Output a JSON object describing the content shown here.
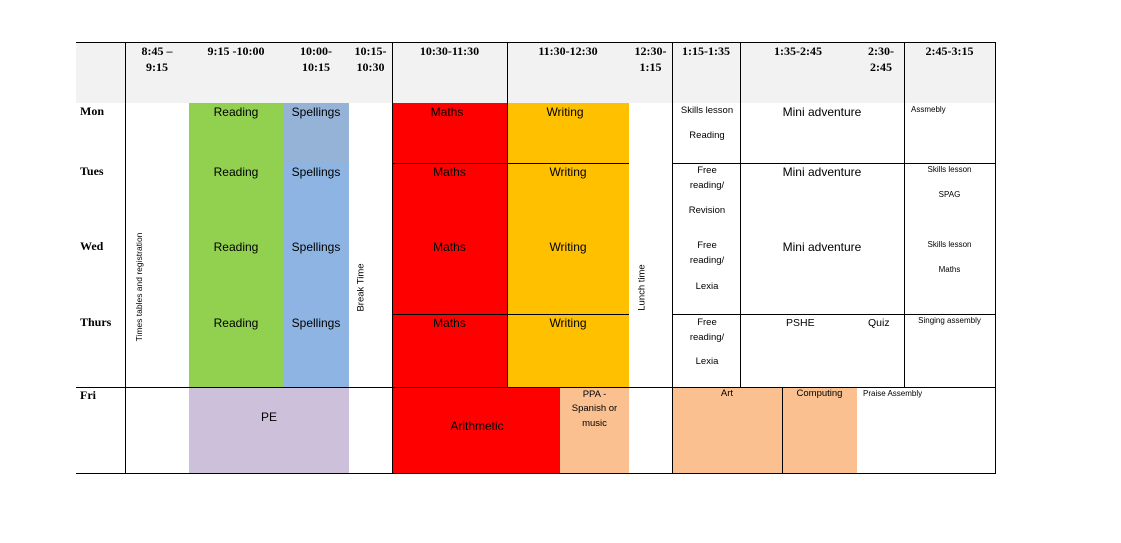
{
  "times": {
    "t1": "8:45 –\n9:15",
    "t2": "9:15 -10:00",
    "t3": "10:00-\n10:15",
    "t4": "10:15-\n10:30",
    "t5": "10:30-11:30",
    "t6": "11:30-12:30",
    "t7": "12:30-\n1:15",
    "t8": "1:15-1:35",
    "t9": "1:35-2:45",
    "t10": "2:30-\n2:45",
    "t11": "2:45-3:15"
  },
  "days": {
    "mon": "Mon",
    "tues": "Tues",
    "wed": "Wed",
    "thurs": "Thurs",
    "fri": "Fri"
  },
  "vertical": {
    "times_tables": "Times tables and registration",
    "break_time": "Break Time",
    "lunch_time": "Lunch time"
  },
  "subjects": {
    "reading": "Reading",
    "spellings": "Spellings",
    "maths": "Maths",
    "writing": "Writing",
    "pe": "PE",
    "arithmetic": "Arithmetic",
    "ppa": "PPA -\nSpanish or\nmusic",
    "art": "Art",
    "computing": "Computing",
    "praise_assembly": "Praise Assembly"
  },
  "afternoon": {
    "mon_skills": "Skills lesson",
    "mon_reading": "Reading",
    "mini_adventure": "Mini adventure",
    "assembly": "Assmebly",
    "tues_free": "Free\nreading/",
    "tues_revision": "Revision",
    "tues_skills": "Skills lesson",
    "tues_spag": "SPAG",
    "wed_free": "Free\nreading/",
    "wed_lexia": "Lexia",
    "wed_skills": "Skills lesson",
    "wed_maths": "Maths",
    "thurs_free": "Free\nreading/",
    "thurs_lexia": "Lexia",
    "pshe": "PSHE",
    "quiz": "Quiz",
    "singing_assembly": "Singing assembly"
  },
  "colors": {
    "header_bg": "#f2f2f2",
    "reading": "#92d050",
    "spellings": "#8eb4e3",
    "spellings_mon": "#95b3d7",
    "maths": "#ff0000",
    "writing": "#ffc000",
    "pe": "#ccc0da",
    "ppa": "#fac090"
  }
}
